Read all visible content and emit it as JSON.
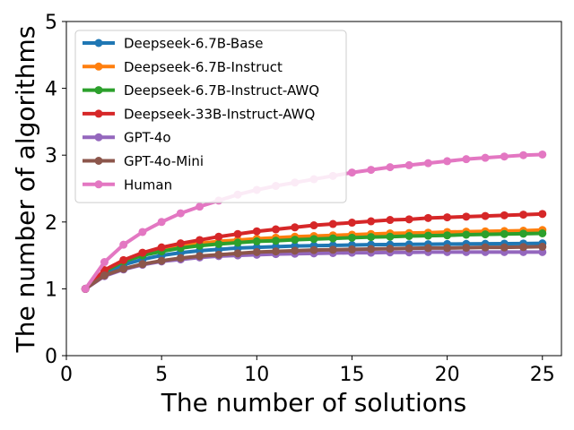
{
  "chart_data": {
    "type": "line",
    "title": "",
    "xlabel": "The number of solutions",
    "ylabel": "The number of algorithms",
    "xlim": [
      0,
      26
    ],
    "ylim": [
      0,
      5
    ],
    "xticks": [
      0,
      5,
      10,
      15,
      20,
      25
    ],
    "yticks": [
      0,
      1,
      2,
      3,
      4,
      5
    ],
    "grid": false,
    "legend_position": "top-left",
    "x": [
      1,
      2,
      3,
      4,
      5,
      6,
      7,
      8,
      9,
      10,
      11,
      12,
      13,
      14,
      15,
      16,
      17,
      18,
      19,
      20,
      21,
      22,
      23,
      24,
      25
    ],
    "series": [
      {
        "name": "Deepseek-6.7B-Base",
        "color": "#1f77b4",
        "values": [
          1.0,
          1.24,
          1.36,
          1.44,
          1.5,
          1.54,
          1.57,
          1.59,
          1.61,
          1.62,
          1.63,
          1.64,
          1.645,
          1.65,
          1.655,
          1.66,
          1.662,
          1.665,
          1.668,
          1.67,
          1.672,
          1.674,
          1.676,
          1.678,
          1.68
        ]
      },
      {
        "name": "Deepseek-6.7B-Instruct",
        "color": "#ff7f0e",
        "values": [
          1.0,
          1.27,
          1.42,
          1.52,
          1.59,
          1.64,
          1.68,
          1.71,
          1.73,
          1.75,
          1.765,
          1.78,
          1.79,
          1.8,
          1.81,
          1.82,
          1.83,
          1.835,
          1.84,
          1.85,
          1.855,
          1.86,
          1.865,
          1.87,
          1.88
        ]
      },
      {
        "name": "Deepseek-6.7B-Instruct-AWQ",
        "color": "#2ca02c",
        "values": [
          1.0,
          1.26,
          1.41,
          1.5,
          1.56,
          1.61,
          1.645,
          1.67,
          1.69,
          1.71,
          1.72,
          1.735,
          1.745,
          1.755,
          1.765,
          1.775,
          1.78,
          1.79,
          1.795,
          1.8,
          1.81,
          1.815,
          1.82,
          1.825,
          1.83
        ]
      },
      {
        "name": "Deepseek-33B-Instruct-AWQ",
        "color": "#d62728",
        "values": [
          1.0,
          1.28,
          1.43,
          1.54,
          1.62,
          1.68,
          1.73,
          1.78,
          1.82,
          1.86,
          1.89,
          1.92,
          1.95,
          1.97,
          1.99,
          2.01,
          2.03,
          2.04,
          2.06,
          2.07,
          2.08,
          2.09,
          2.1,
          2.11,
          2.12
        ]
      },
      {
        "name": "GPT-4o",
        "color": "#9467bd",
        "values": [
          1.0,
          1.19,
          1.29,
          1.36,
          1.41,
          1.44,
          1.47,
          1.49,
          1.5,
          1.51,
          1.52,
          1.525,
          1.53,
          1.535,
          1.54,
          1.54,
          1.545,
          1.545,
          1.55,
          1.55,
          1.55,
          1.55,
          1.55,
          1.55,
          1.55
        ]
      },
      {
        "name": "GPT-4o-Mini",
        "color": "#8c564b",
        "values": [
          1.0,
          1.2,
          1.3,
          1.37,
          1.42,
          1.46,
          1.49,
          1.51,
          1.53,
          1.55,
          1.56,
          1.57,
          1.58,
          1.585,
          1.59,
          1.595,
          1.6,
          1.605,
          1.61,
          1.61,
          1.615,
          1.62,
          1.62,
          1.625,
          1.63
        ]
      },
      {
        "name": "Human",
        "color": "#e377c2",
        "values": [
          1.0,
          1.4,
          1.66,
          1.85,
          2.0,
          2.13,
          2.23,
          2.32,
          2.41,
          2.48,
          2.54,
          2.59,
          2.64,
          2.69,
          2.74,
          2.78,
          2.82,
          2.85,
          2.88,
          2.91,
          2.94,
          2.96,
          2.98,
          3.0,
          3.01
        ]
      }
    ]
  }
}
